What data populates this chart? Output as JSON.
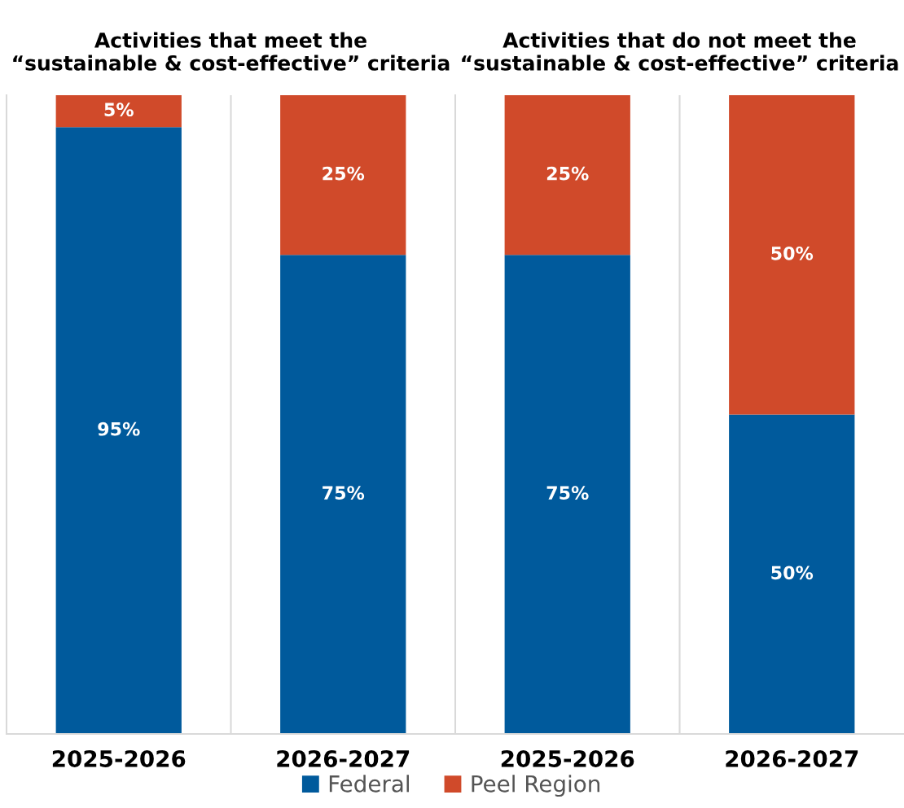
{
  "chart_data": [
    {
      "type": "bar",
      "title": "Activities that meet the\n“sustainable & cost-effective” criteria",
      "categories": [
        "2025-2026",
        "2026-2027"
      ],
      "stacked": true,
      "ylim": [
        0,
        100
      ],
      "tick_labels": "x",
      "grid": "x",
      "legend": "bottom",
      "series": [
        {
          "name": "Federal",
          "color": "#005a9c",
          "values": [
            95,
            75
          ],
          "value_labels": [
            "95%",
            "75%"
          ]
        },
        {
          "name": "Peel Region",
          "color": "#d04a2a",
          "values": [
            5,
            25
          ],
          "value_labels": [
            "5%",
            "25%"
          ]
        }
      ]
    },
    {
      "type": "bar",
      "title": "Activities that do not meet the\n“sustainable & cost-effective” criteria",
      "categories": [
        "2025-2026",
        "2026-2027"
      ],
      "stacked": true,
      "ylim": [
        0,
        100
      ],
      "tick_labels": "x",
      "grid": "x",
      "legend": "bottom",
      "series": [
        {
          "name": "Federal",
          "color": "#005a9c",
          "values": [
            75,
            50
          ],
          "value_labels": [
            "75%",
            "50%"
          ]
        },
        {
          "name": "Peel Region",
          "color": "#d04a2a",
          "values": [
            25,
            50
          ],
          "value_labels": [
            "25%",
            "50%"
          ]
        }
      ]
    }
  ]
}
